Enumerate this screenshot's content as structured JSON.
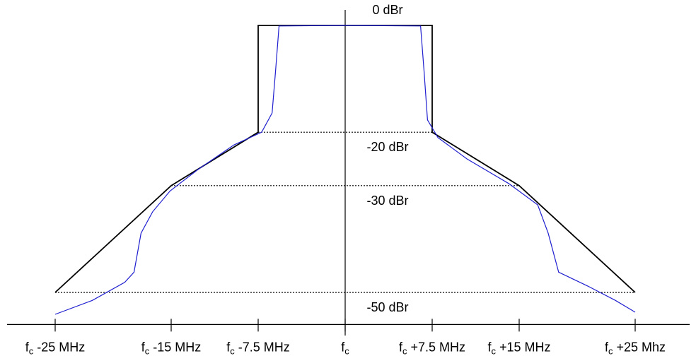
{
  "chart_data": {
    "type": "line",
    "xlim": [
      -25,
      25
    ],
    "ylim": [
      -56,
      0
    ],
    "xticks": [
      {
        "value": -25,
        "label": "fc -25 MHz"
      },
      {
        "value": -15,
        "label": "fc -15 MHz"
      },
      {
        "value": -7.5,
        "label": "fc -7.5 MHz"
      },
      {
        "value": 0,
        "label": "fc"
      },
      {
        "value": 7.5,
        "label": "fc +7.5 MHz"
      },
      {
        "value": 15,
        "label": "fc +15 MHz"
      },
      {
        "value": 25,
        "label": "fc +25 Mhz"
      }
    ],
    "yticks": [
      {
        "value": 0,
        "label": "0 dBr"
      },
      {
        "value": -20,
        "label": "-20 dBr"
      },
      {
        "value": -30,
        "label": "-30 dBr"
      },
      {
        "value": -50,
        "label": "-50 dBr"
      }
    ],
    "grid": true,
    "series": [
      {
        "color": "#000000",
        "x": [
          -25,
          -15,
          -7.5,
          -7.5,
          7.5,
          7.5,
          15,
          25
        ],
        "values": [
          -50,
          -30,
          -20,
          0,
          0,
          -20,
          -30,
          -50
        ]
      },
      {
        "color": "#1f1fd0",
        "x": [
          -25,
          -21.8,
          -19,
          -18.2,
          -17.6,
          -16.6,
          -15.1,
          -12.7,
          -9.6,
          -7.2,
          -6.3,
          -6,
          -5.7,
          0,
          6.5,
          6.8,
          7.1,
          8,
          10.5,
          14.1,
          16.6,
          17.5,
          18.4,
          20.9,
          23.3,
          25
        ],
        "values": [
          -54.1,
          -51.5,
          -48.1,
          -46.2,
          -38.9,
          -34.9,
          -31,
          -27,
          -22.4,
          -20,
          -16.4,
          -8.5,
          -0.1,
          0,
          -0.1,
          -8.5,
          -17.7,
          -21,
          -25,
          -29.6,
          -33.6,
          -38.9,
          -46.2,
          -48.8,
          -51.5,
          -53.7
        ]
      }
    ]
  }
}
